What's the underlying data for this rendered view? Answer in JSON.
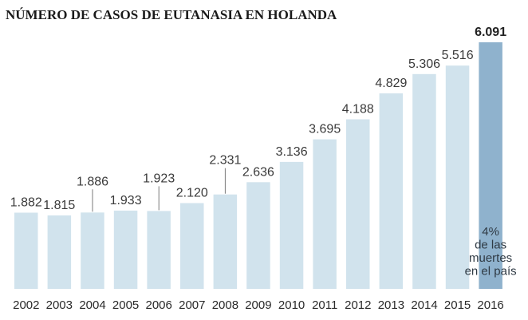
{
  "chart_data": {
    "type": "bar",
    "title": "NÚMERO DE CASOS DE EUTANASIA EN HOLANDA",
    "categories": [
      "2002",
      "2003",
      "2004",
      "2005",
      "2006",
      "2007",
      "2008",
      "2009",
      "2010",
      "2011",
      "2012",
      "2013",
      "2014",
      "2015",
      "2016"
    ],
    "values": [
      1882,
      1815,
      1886,
      1933,
      1923,
      2120,
      2331,
      2636,
      3136,
      3695,
      4188,
      4829,
      5306,
      5516,
      6091
    ],
    "value_labels": [
      "1.882",
      "1.815",
      "1.886",
      "1.933",
      "1.923",
      "2.120",
      "2.331",
      "2.636",
      "3.136",
      "3.695",
      "4.188",
      "4.829",
      "5.306",
      "5.516",
      "6.091"
    ],
    "ylim": [
      0,
      6100
    ],
    "grid": false,
    "highlight_category": "2016",
    "annotation": {
      "category": "2016",
      "lines": [
        "4%",
        "de las",
        "muertes",
        "en el país"
      ]
    },
    "colors": {
      "bar": "#d1e3ed",
      "bar_highlight": "#8fb2cd",
      "leader_line": "#7a7a7a",
      "baseline": "#b9c8d2"
    }
  }
}
